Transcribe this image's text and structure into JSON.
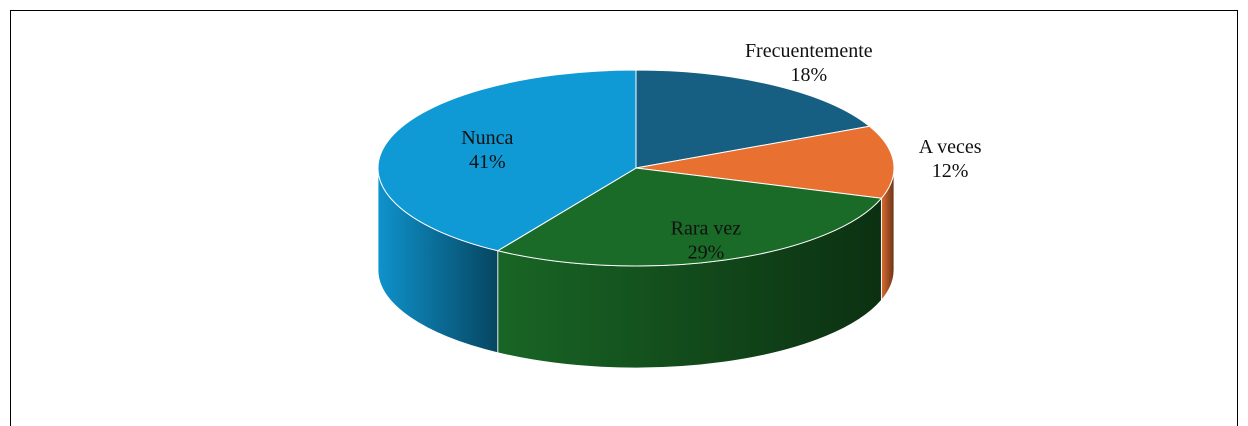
{
  "chart_data": {
    "type": "pie",
    "categories": [
      "Frecuentemente",
      "A veces",
      "Rara vez",
      "Nunca"
    ],
    "values": [
      18,
      12,
      29,
      41
    ],
    "value_labels": [
      "18%",
      "12%",
      "29%",
      "41%"
    ],
    "colors": [
      "#175f82",
      "#e87132",
      "#1a6b27",
      "#0f9ad6"
    ]
  }
}
